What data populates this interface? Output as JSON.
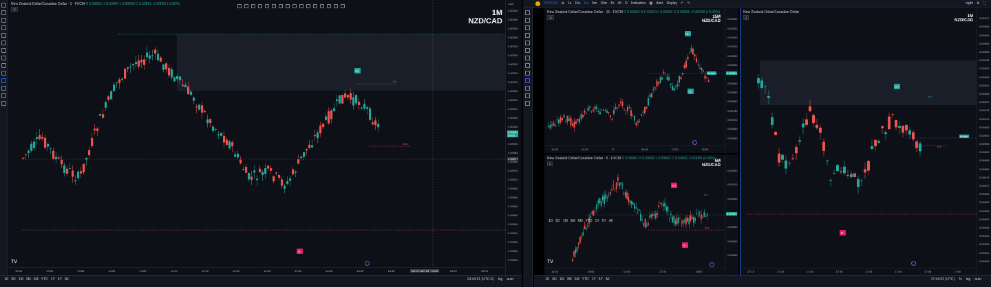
{
  "topbar": {
    "symbol": "NZDCAD",
    "intervals": [
      "1s",
      "15s",
      "1m",
      "5m",
      "15m",
      "1h",
      "4h",
      "D"
    ],
    "indicators": "Indicators",
    "alert": "Alert",
    "replay": "Replay",
    "layout_name": "night"
  },
  "pane1": {
    "legend_title": "New Zealand Dollar/Canadian Dollar · 1 · FXCM",
    "legend_ohlc": "O 0.59991 H 0.59994 L 0.59990 C 0.59991 -0.00002 (-0.00%)",
    "badge": "11",
    "tf_big": "1M",
    "pair_big": "NZD/CAD",
    "currency": "CAD",
    "y_ticks": [
      "0.60065",
      "0.60060",
      "0.60055",
      "0.60050",
      "0.60045",
      "0.60040",
      "0.60035",
      "0.60030",
      "0.60025",
      "0.60020",
      "0.60015",
      "0.60010",
      "0.60005",
      "0.60000",
      "0.59995",
      "0.59990",
      "0.59985",
      "0.59980",
      "0.59975",
      "0.59970",
      "0.59965",
      "0.59960",
      "0.59955",
      "0.59950",
      "0.59945",
      "0.59940",
      "0.59935",
      "0.59930",
      "0.59925"
    ],
    "x_ticks": [
      "13:45",
      "13:50",
      "13:55",
      "14:00",
      "14:05",
      "14:10",
      "14:15",
      "14:20",
      "14:25",
      "14:30",
      "14:35",
      "14:40",
      "14:45",
      "14:50",
      "15:00",
      "15:05"
    ],
    "crosshair_time": "Tue 17 Jan '23 · 14:54",
    "price_tag": "0.59991",
    "price_tag_sub": "00:08",
    "cross_price": "0.59977",
    "label_bh": "BH",
    "label_sl": "SL",
    "label_15m": "15m",
    "label_5m": "5m",
    "ranges": [
      "1D",
      "5D",
      "1M",
      "3M",
      "6M",
      "YTD",
      "1Y",
      "5Y",
      "All"
    ],
    "clock": "14:44:51 (UTC-5)",
    "log": "log",
    "auto": "auto"
  },
  "pane2": {
    "legend_title": "New Zealand Dollar/Canadian Dollar · 15 · FXCM",
    "legend_ohlc": "O 0.59963 H 0.60014 L 0.59956 C 0.59991 +0.00028 (+0.05%)",
    "badge": "11",
    "tf_big": "15M",
    "pair_big": "NZD/CAD",
    "y_ticks": [
      "0.60250",
      "0.60200",
      "0.60150",
      "0.60100",
      "0.60050",
      "0.60000",
      "0.59950",
      "0.59900",
      "0.59850",
      "0.59800",
      "0.59750",
      "0.59700",
      "0.59650",
      "0.59600"
    ],
    "x_ticks": [
      "12:00",
      "18:00",
      "17",
      "06:00",
      "12:00",
      "18:00"
    ],
    "tag_bullish": "Bullish",
    "tag_price": "0.59991",
    "label_bh": "BH",
    "label_hl": "HL"
  },
  "pane3": {
    "legend_title": "New Zealand Dollar/Canadian Dollar · 5 · FXCM",
    "legend_ohlc": "O 0.59991 H 0.59993 L 0.59991 C 0.59991 -0.00000 (0.00%)",
    "badge": "9",
    "tf_big": "5M",
    "pair_big": "NZD/CAD",
    "y_ticks": [
      "0.60150",
      "0.60100",
      "0.60050",
      "0.60000",
      "0.59950",
      "0.59900",
      "0.59850"
    ],
    "x_ticks": [
      "14:00",
      "15:00",
      "16:00",
      "17:00",
      "18:00"
    ],
    "tag_price": "0.59991",
    "label_sh": "SH",
    "label_sl": "SL",
    "label_15m": "15m",
    "label_5m": "5m",
    "ranges": [
      "1D",
      "5D",
      "1M",
      "3M",
      "6M",
      "YTD",
      "1Y",
      "5Y",
      "All"
    ]
  },
  "pane4": {
    "legend_title": "New Zealand Dollar/Canadian Dollar",
    "badge": "4",
    "tf_big": "1M",
    "pair_big": "NZD/CAD",
    "y_ticks": [
      "0.60070",
      "0.60065",
      "0.60060",
      "0.60055",
      "0.60050",
      "0.60045",
      "0.60040",
      "0.60035",
      "0.60030",
      "0.60025",
      "0.60020",
      "0.60015",
      "0.60010",
      "0.60005",
      "0.60000",
      "0.59995",
      "0.59990",
      "0.59985",
      "0.59980",
      "0.59975",
      "0.59970",
      "0.59965",
      "0.59960",
      "0.59955",
      "0.59950",
      "0.59945",
      "0.59940",
      "0.59935",
      "0.59930",
      "0.59925"
    ],
    "x_ticks": [
      "17:15",
      "17:20",
      "17:25",
      "17:30",
      "17:35",
      "17:40",
      "17:45",
      "17:50"
    ],
    "tag_bullish": "Bullish",
    "label_bh": "BH",
    "label_sl": "SL",
    "label_15m": "15m",
    "label_5m": "5m",
    "clock": "17:44:52 (UTC)",
    "pct": "%",
    "log": "log",
    "auto": "auto"
  },
  "colors": {
    "bull": "#26a69a",
    "bear": "#ef5350",
    "panel": "#0d1017",
    "accent": "#2962ff",
    "pink": "#e91e63"
  }
}
